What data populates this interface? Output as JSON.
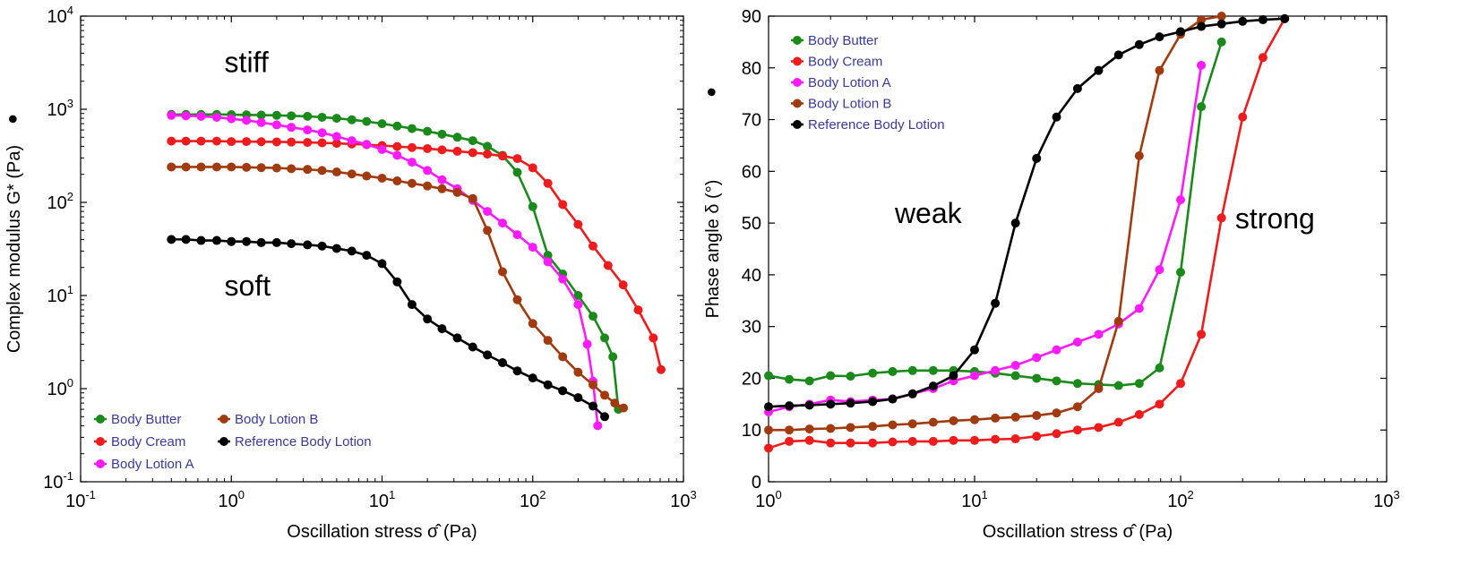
{
  "chart_data": [
    {
      "type": "line",
      "xscale": "log",
      "yscale": "log",
      "xlim": [
        0.1,
        1000
      ],
      "ylim": [
        0.1,
        10000
      ],
      "xlabel": "Oscillation stress σ̂ (Pa)",
      "ylabel": "Complex modulus G* (Pa)",
      "ylabel_marker": "●",
      "x_ticks": [
        {
          "v": 0.1,
          "b": "10",
          "e": "-1"
        },
        {
          "v": 1,
          "b": "10",
          "e": "0"
        },
        {
          "v": 10,
          "b": "10",
          "e": "1"
        },
        {
          "v": 100,
          "b": "10",
          "e": "2"
        },
        {
          "v": 1000,
          "b": "10",
          "e": "3"
        }
      ],
      "y_ticks": [
        {
          "v": 0.1,
          "b": "10",
          "e": "-1"
        },
        {
          "v": 1,
          "b": "10",
          "e": "0"
        },
        {
          "v": 10,
          "b": "10",
          "e": "1"
        },
        {
          "v": 100,
          "b": "10",
          "e": "2"
        },
        {
          "v": 1000,
          "b": "10",
          "e": "3"
        },
        {
          "v": 10000,
          "b": "10",
          "e": "4"
        }
      ],
      "annotations": [
        {
          "text": "stiff",
          "x": 0.9,
          "y": 2500
        },
        {
          "text": "soft",
          "x": 0.9,
          "y": 10
        }
      ],
      "legend_position": "bottom-left",
      "legend_columns": 2,
      "series": [
        {
          "name": "Body Butter",
          "color": "#1a8a1a",
          "x": [
            0.4,
            0.5,
            0.63,
            0.8,
            1,
            1.26,
            1.58,
            2,
            2.5,
            3.2,
            4,
            5,
            6.3,
            7.9,
            10,
            12.6,
            15.8,
            20,
            25,
            31.6,
            40,
            50,
            63,
            79,
            100,
            126,
            158,
            200,
            251,
            300,
            340,
            370
          ],
          "y": [
            880,
            880,
            880,
            880,
            875,
            870,
            865,
            860,
            850,
            840,
            820,
            800,
            770,
            740,
            700,
            660,
            620,
            580,
            540,
            500,
            460,
            400,
            320,
            210,
            90,
            27,
            17,
            10,
            6,
            3.5,
            2.2,
            0.6
          ]
        },
        {
          "name": "Body Cream",
          "color": "#ee1c1c",
          "x": [
            0.4,
            0.5,
            0.63,
            0.8,
            1,
            1.26,
            1.58,
            2,
            2.5,
            3.2,
            4,
            5,
            6.3,
            7.9,
            10,
            12.6,
            15.8,
            20,
            25,
            31.6,
            40,
            50,
            63,
            79,
            100,
            126,
            158,
            200,
            251,
            316,
            398,
            501,
            631,
            710
          ],
          "y": [
            455,
            455,
            455,
            455,
            450,
            450,
            448,
            446,
            444,
            440,
            436,
            430,
            424,
            416,
            408,
            398,
            388,
            378,
            366,
            354,
            342,
            330,
            315,
            295,
            235,
            160,
            95,
            58,
            34,
            21,
            13,
            7,
            3.5,
            1.6
          ]
        },
        {
          "name": "Body Lotion A",
          "color": "#ff1aff",
          "x": [
            0.4,
            0.5,
            0.63,
            0.8,
            1,
            1.26,
            1.58,
            2,
            2.5,
            3.2,
            4,
            5,
            6.3,
            7.9,
            10,
            12.6,
            15.8,
            20,
            25,
            31.6,
            40,
            50,
            63,
            79,
            100,
            126,
            158,
            200,
            230,
            251,
            270
          ],
          "y": [
            860,
            850,
            840,
            820,
            790,
            760,
            720,
            680,
            640,
            600,
            560,
            510,
            460,
            420,
            370,
            320,
            270,
            220,
            175,
            140,
            105,
            80,
            60,
            45,
            33,
            23,
            15,
            8,
            3,
            1.2,
            0.4
          ]
        },
        {
          "name": "Body Lotion B",
          "color": "#a23a10",
          "x": [
            0.4,
            0.5,
            0.63,
            0.8,
            1,
            1.26,
            1.58,
            2,
            2.5,
            3.2,
            4,
            5,
            6.3,
            7.9,
            10,
            12.6,
            15.8,
            20,
            25,
            31.6,
            40,
            50,
            63,
            79,
            100,
            126,
            158,
            200,
            251,
            300,
            350,
            400
          ],
          "y": [
            240,
            240,
            240,
            240,
            240,
            238,
            236,
            234,
            230,
            226,
            220,
            212,
            202,
            192,
            182,
            170,
            160,
            150,
            140,
            128,
            110,
            50,
            18,
            9,
            5,
            3.3,
            2.2,
            1.5,
            1.1,
            0.85,
            0.7,
            0.62
          ]
        },
        {
          "name": "Reference Body Lotion",
          "color": "#000000",
          "x": [
            0.4,
            0.5,
            0.63,
            0.8,
            1,
            1.26,
            1.58,
            2,
            2.5,
            3.2,
            4,
            5,
            6.3,
            7.9,
            10,
            12.6,
            15.8,
            20,
            25,
            31.6,
            40,
            50,
            63,
            79,
            100,
            126,
            158,
            200,
            251,
            300
          ],
          "y": [
            40,
            40,
            39,
            39,
            38,
            38,
            37,
            37,
            36,
            35,
            34,
            32,
            30,
            27,
            22,
            14,
            8,
            5.6,
            4.4,
            3.5,
            2.8,
            2.3,
            1.9,
            1.55,
            1.3,
            1.1,
            0.95,
            0.8,
            0.65,
            0.5
          ]
        }
      ]
    },
    {
      "type": "line",
      "xscale": "log",
      "yscale": "linear",
      "xlim": [
        1,
        1000
      ],
      "ylim": [
        0,
        90
      ],
      "xlabel": "Oscillation stress σ̂ (Pa)",
      "ylabel": "Phase angle δ (°)",
      "ylabel_marker": "●",
      "x_ticks": [
        {
          "v": 1,
          "b": "10",
          "e": "0"
        },
        {
          "v": 10,
          "b": "10",
          "e": "1"
        },
        {
          "v": 100,
          "b": "10",
          "e": "2"
        },
        {
          "v": 1000,
          "b": "10",
          "e": "3"
        }
      ],
      "y_ticks": [
        {
          "v": 0,
          "b": "0",
          "e": ""
        },
        {
          "v": 10,
          "b": "10",
          "e": ""
        },
        {
          "v": 20,
          "b": "20",
          "e": ""
        },
        {
          "v": 30,
          "b": "30",
          "e": ""
        },
        {
          "v": 40,
          "b": "40",
          "e": ""
        },
        {
          "v": 50,
          "b": "50",
          "e": ""
        },
        {
          "v": 60,
          "b": "60",
          "e": ""
        },
        {
          "v": 70,
          "b": "70",
          "e": ""
        },
        {
          "v": 80,
          "b": "80",
          "e": ""
        },
        {
          "v": 90,
          "b": "90",
          "e": ""
        }
      ],
      "annotations": [
        {
          "text": "weak",
          "x": 4.1,
          "y": 50
        },
        {
          "text": "strong",
          "x": 184,
          "y": 49
        }
      ],
      "legend_position": "top-left",
      "legend_columns": 1,
      "series": [
        {
          "name": "Body Butter",
          "color": "#1a8a1a",
          "x": [
            1,
            1.26,
            1.58,
            2,
            2.5,
            3.2,
            4,
            5,
            6.3,
            7.9,
            10,
            12.6,
            15.8,
            20,
            25,
            31.6,
            40,
            50,
            63,
            79,
            100,
            126,
            158
          ],
          "y": [
            20.5,
            19.8,
            19.5,
            20.5,
            20.4,
            21,
            21.3,
            21.5,
            21.5,
            21.5,
            21.3,
            21,
            20.5,
            20,
            19.5,
            19,
            18.8,
            18.6,
            19,
            22,
            40.5,
            72.5,
            85
          ]
        },
        {
          "name": "Body Cream",
          "color": "#ee1c1c",
          "x": [
            1,
            1.26,
            1.58,
            2,
            2.5,
            3.2,
            4,
            5,
            6.3,
            7.9,
            10,
            12.6,
            15.8,
            20,
            25,
            31.6,
            40,
            50,
            63,
            79,
            100,
            126,
            158,
            200,
            251,
            320
          ],
          "y": [
            6.5,
            7.8,
            8,
            7.5,
            7.5,
            7.5,
            7.7,
            7.8,
            7.8,
            8,
            8,
            8.2,
            8.3,
            8.8,
            9.3,
            10,
            10.5,
            11.5,
            13,
            15,
            19,
            28.5,
            51,
            70.5,
            82,
            89.5
          ]
        },
        {
          "name": "Body Lotion A",
          "color": "#ff1aff",
          "x": [
            1,
            1.26,
            1.58,
            2,
            2.5,
            3.2,
            4,
            5,
            6.3,
            7.9,
            10,
            12.6,
            15.8,
            20,
            25,
            31.6,
            40,
            50,
            63,
            79,
            100,
            126
          ],
          "y": [
            13.5,
            14.5,
            15,
            15.8,
            15.5,
            15.8,
            16,
            17,
            18,
            19.5,
            20.5,
            21.5,
            22.5,
            24,
            25.5,
            27,
            28.5,
            30.5,
            33.5,
            41,
            54.5,
            80.5
          ]
        },
        {
          "name": "Body Lotion B",
          "color": "#a23a10",
          "x": [
            1,
            1.26,
            1.58,
            2,
            2.5,
            3.2,
            4,
            5,
            6.3,
            7.9,
            10,
            12.6,
            15.8,
            20,
            25,
            31.6,
            40,
            50,
            63,
            79,
            100,
            126,
            158
          ],
          "y": [
            10,
            10,
            10.2,
            10.3,
            10.5,
            10.7,
            11,
            11.2,
            11.5,
            11.8,
            12,
            12.3,
            12.5,
            12.8,
            13.3,
            14.5,
            18,
            31,
            63,
            79.5,
            86.5,
            89.3,
            90
          ]
        },
        {
          "name": "Reference Body Lotion",
          "color": "#000000",
          "x": [
            1,
            1.26,
            1.58,
            2,
            2.5,
            3.2,
            4,
            5,
            6.3,
            7.9,
            10,
            12.6,
            15.8,
            20,
            25,
            31.6,
            40,
            50,
            63,
            79,
            100,
            126,
            158,
            200,
            251,
            320
          ],
          "y": [
            14.5,
            14.7,
            14.8,
            15,
            15.2,
            15.5,
            16,
            17,
            18.5,
            20.5,
            25.5,
            34.5,
            50,
            62.5,
            70.5,
            76,
            79.5,
            82.5,
            84.5,
            86,
            87,
            88,
            88.5,
            89,
            89.3,
            89.5
          ]
        }
      ]
    }
  ]
}
